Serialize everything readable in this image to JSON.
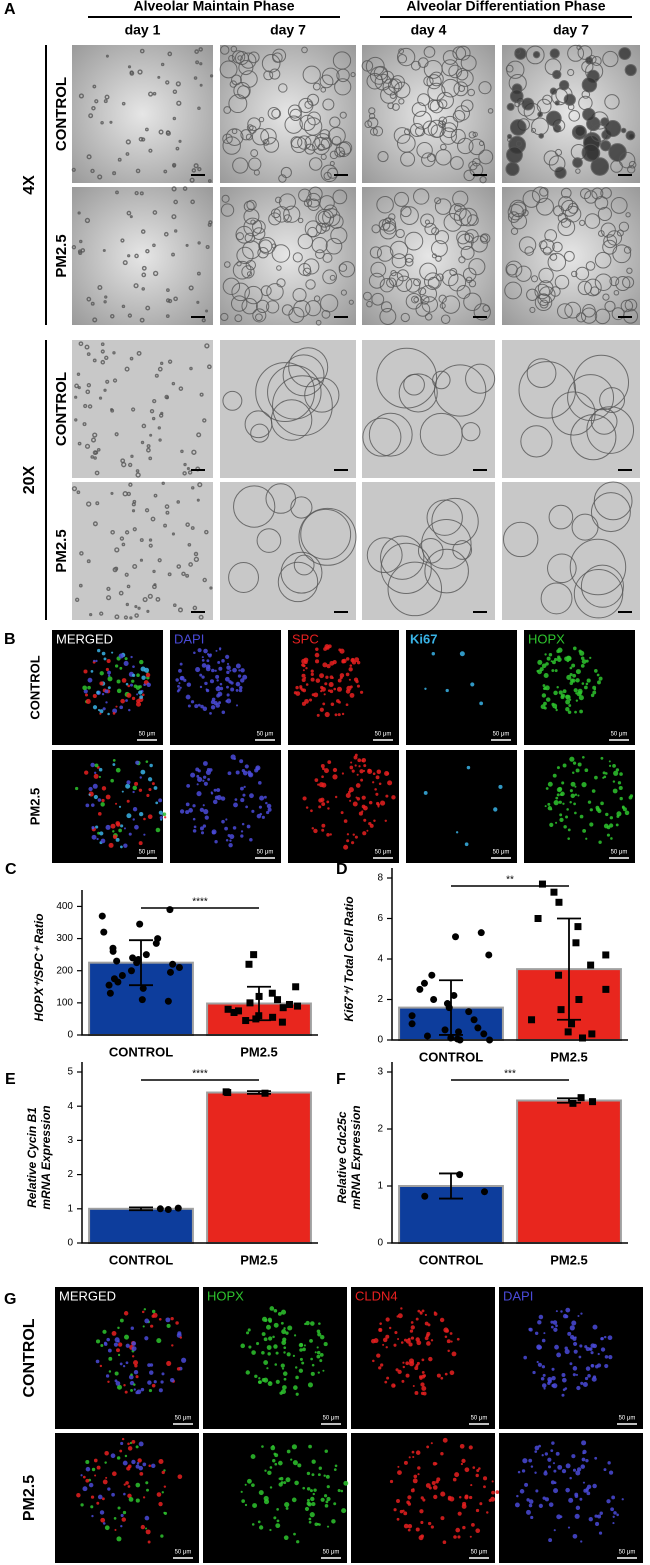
{
  "panel_a": {
    "label": "A",
    "phases": [
      "Alveolar Maintain Phase",
      "Alveolar Differentiation Phase"
    ],
    "days": [
      "day 1",
      "day 7",
      "day 4",
      "day 7"
    ],
    "magnifications": [
      "4X",
      "20X"
    ],
    "rows": [
      "CONTROL",
      "PM2.5"
    ]
  },
  "panel_b": {
    "label": "B",
    "channels": [
      "MERGED",
      "DAPI",
      "SPC",
      "Ki67",
      "HOPX"
    ],
    "channel_colors": [
      "#ffffff",
      "#4a4ad8",
      "#e82020",
      "#39b3e6",
      "#2ec42e"
    ],
    "rows": [
      "CONTROL",
      "PM2.5"
    ],
    "scale": "50 μm"
  },
  "panel_g": {
    "label": "G",
    "channels": [
      "MERGED",
      "HOPX",
      "CLDN4",
      "DAPI"
    ],
    "channel_colors": [
      "#ffffff",
      "#2ec42e",
      "#e82020",
      "#4a4ad8"
    ],
    "rows": [
      "CONTROL",
      "PM2.5"
    ],
    "scale": "50 μm"
  },
  "chart_data": [
    {
      "type": "bar",
      "panel": "C",
      "ylabel": [
        "HOPX⁺/SPC⁺ Ratio"
      ],
      "categories": [
        "CONTROL",
        "PM2.5"
      ],
      "values": [
        225,
        98
      ],
      "errors": [
        70,
        52
      ],
      "colors": [
        "#0d3d9c",
        "#e8261e"
      ],
      "markers": [
        "circle",
        "square"
      ],
      "points": [
        [
          390,
          370,
          345,
          320,
          300,
          285,
          270,
          260,
          250,
          240,
          235,
          230,
          225,
          220,
          210,
          200,
          195,
          185,
          175,
          165,
          155,
          145,
          130,
          110,
          105
        ],
        [
          250,
          220,
          150,
          130,
          120,
          110,
          100,
          95,
          90,
          85,
          80,
          75,
          70,
          60,
          55,
          50,
          45,
          40
        ]
      ],
      "ylim": [
        0,
        420
      ],
      "yticks": [
        0,
        100,
        200,
        300,
        400
      ],
      "annotation": "****"
    },
    {
      "type": "bar",
      "panel": "D",
      "ylabel": [
        "Ki67⁺/ Total Cell Ratio"
      ],
      "categories": [
        "CONTROL",
        "PM2.5"
      ],
      "values": [
        1.6,
        3.5
      ],
      "errors": [
        1.35,
        2.5
      ],
      "colors": [
        "#0d3d9c",
        "#e8261e"
      ],
      "markers": [
        "circle",
        "square"
      ],
      "points": [
        [
          5.3,
          5.1,
          4.2,
          3.2,
          2.8,
          2.5,
          2.2,
          2.0,
          1.8,
          1.6,
          1.4,
          1.2,
          1.0,
          0.8,
          0.6,
          0.5,
          0.4,
          0.3,
          0.2,
          0.1,
          0.05,
          0,
          0
        ],
        [
          7.7,
          7.3,
          6.8,
          6.0,
          5.6,
          4.8,
          4.2,
          3.7,
          3.2,
          2.5,
          2.0,
          1.5,
          1.0,
          0.8,
          0.4,
          0.3,
          0.1
        ]
      ],
      "ylim": [
        0,
        8
      ],
      "yticks": [
        0,
        2,
        4,
        6,
        8
      ],
      "annotation": "**"
    },
    {
      "type": "bar",
      "panel": "E",
      "ylabel": [
        "Relative Cycin B1",
        "mRNA Expression"
      ],
      "categories": [
        "CONTROL",
        "PM2.5"
      ],
      "values": [
        1.0,
        4.4
      ],
      "errors": [
        0.04,
        0.04
      ],
      "colors": [
        "#0d3d9c",
        "#e8261e"
      ],
      "markers": [
        "circle",
        "square"
      ],
      "points": [
        [
          1.0,
          1.02,
          0.98
        ],
        [
          4.42,
          4.4,
          4.38
        ]
      ],
      "ylim": [
        0,
        5
      ],
      "yticks": [
        0,
        1,
        2,
        3,
        4,
        5
      ],
      "annotation": "****"
    },
    {
      "type": "bar",
      "panel": "F",
      "ylabel": [
        "Relative Cdc25c",
        "mRNA Expression"
      ],
      "categories": [
        "CONTROL",
        "PM2.5"
      ],
      "values": [
        1.0,
        2.5
      ],
      "errors": [
        0.22,
        0.04
      ],
      "colors": [
        "#0d3d9c",
        "#e8261e"
      ],
      "markers": [
        "circle",
        "square"
      ],
      "points": [
        [
          1.2,
          0.9,
          0.82
        ],
        [
          2.55,
          2.48,
          2.45
        ]
      ],
      "ylim": [
        0,
        3
      ],
      "yticks": [
        0,
        1,
        2,
        3
      ],
      "annotation": "***"
    }
  ]
}
